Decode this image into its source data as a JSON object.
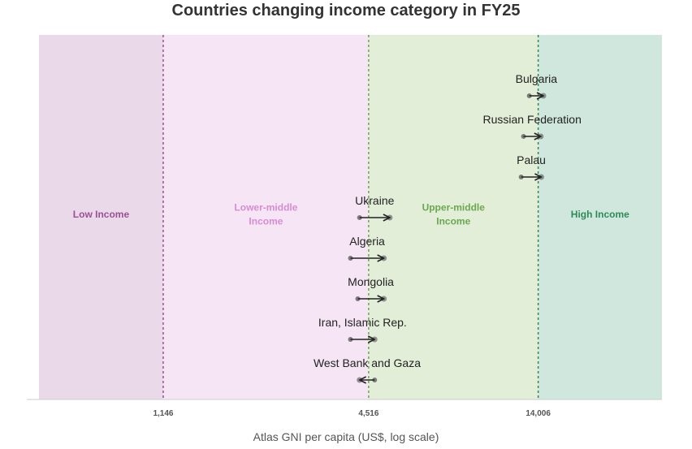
{
  "chart_data": {
    "type": "dumbbell-arrow",
    "title": "Countries changing income category in FY25",
    "xlabel": "Atlas GNI per capita (US$, log scale)",
    "xscale": "log",
    "xlim": [
      500,
      32000
    ],
    "ticks": [
      {
        "value": 1146,
        "label": "1,146"
      },
      {
        "value": 4516,
        "label": "4,516"
      },
      {
        "value": 14006,
        "label": "14,006"
      }
    ],
    "thresholds": [
      {
        "value": 1146,
        "color": "#9b4f96"
      },
      {
        "value": 4516,
        "color": "#6aa84f"
      },
      {
        "value": 14006,
        "color": "#2e8b57"
      }
    ],
    "bands": [
      {
        "label": "Low Income",
        "from": 500,
        "to": 1146,
        "fill": "#ead9e8",
        "text_color": "#9b4f96"
      },
      {
        "label": "Lower-middle\nIncome",
        "from": 1146,
        "to": 4516,
        "fill": "#f6e6f5",
        "text_color": "#d78bd1"
      },
      {
        "label": "Upper-middle\nIncome",
        "from": 4516,
        "to": 14006,
        "fill": "#e3eed9",
        "text_color": "#6aa84f"
      },
      {
        "label": "High Income",
        "from": 14006,
        "to": 32000,
        "fill": "#d0e7dd",
        "text_color": "#2e8b57"
      }
    ],
    "series": [
      {
        "country": "Bulgaria",
        "from": 13200,
        "to": 14500
      },
      {
        "country": "Russian Federation",
        "from": 12700,
        "to": 14250
      },
      {
        "country": "Palau",
        "from": 12500,
        "to": 14300
      },
      {
        "country": "Ukraine",
        "from": 4250,
        "to": 5200
      },
      {
        "country": "Algeria",
        "from": 4000,
        "to": 5000
      },
      {
        "country": "Mongolia",
        "from": 4200,
        "to": 5000
      },
      {
        "country": "Iran, Islamic Rep.",
        "from": 4000,
        "to": 4700
      },
      {
        "country": "West Bank and Gaza",
        "from": 4700,
        "to": 4250
      }
    ]
  }
}
